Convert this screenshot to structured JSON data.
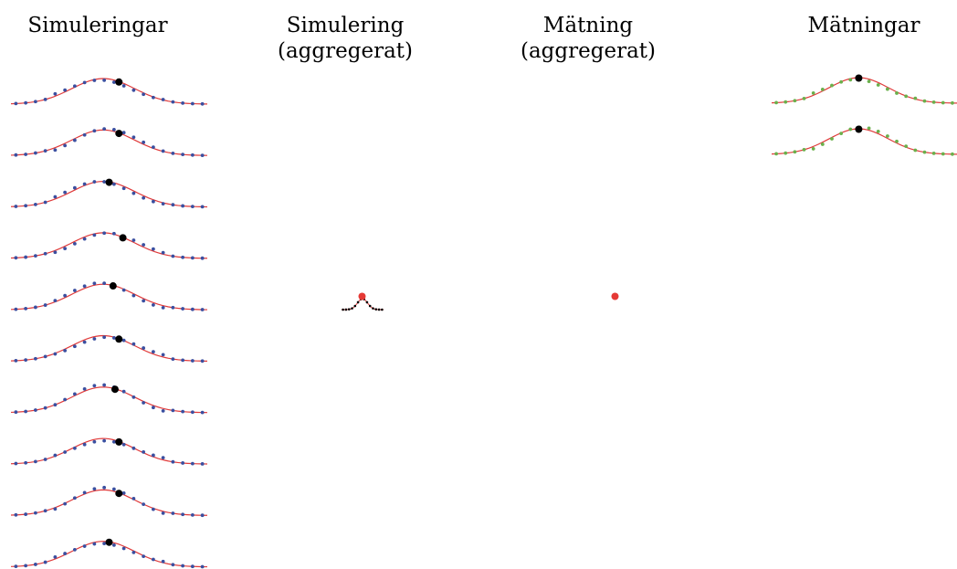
{
  "headers": {
    "simulations": "Simuleringar",
    "simulation_agg_line1": "Simulering",
    "simulation_agg_line2": "(aggregerat)",
    "measurement_agg_line1": "Mätning",
    "measurement_agg_line2": "(aggregerat)",
    "measurements": "Mätningar"
  },
  "colors": {
    "fit_curve": "#e03a3a",
    "simulation_points": "#3a4fa0",
    "measurement_points": "#6ab04c",
    "peak_marker": "#000000",
    "aggregate_marker": "#e53935"
  },
  "simulations": {
    "count": 10,
    "peak_positions": [
      0.55,
      0.55,
      0.5,
      0.57,
      0.52,
      0.55,
      0.53,
      0.55,
      0.55,
      0.5
    ]
  },
  "measurements": {
    "count": 2,
    "peak_positions": [
      0.47,
      0.47
    ]
  }
}
